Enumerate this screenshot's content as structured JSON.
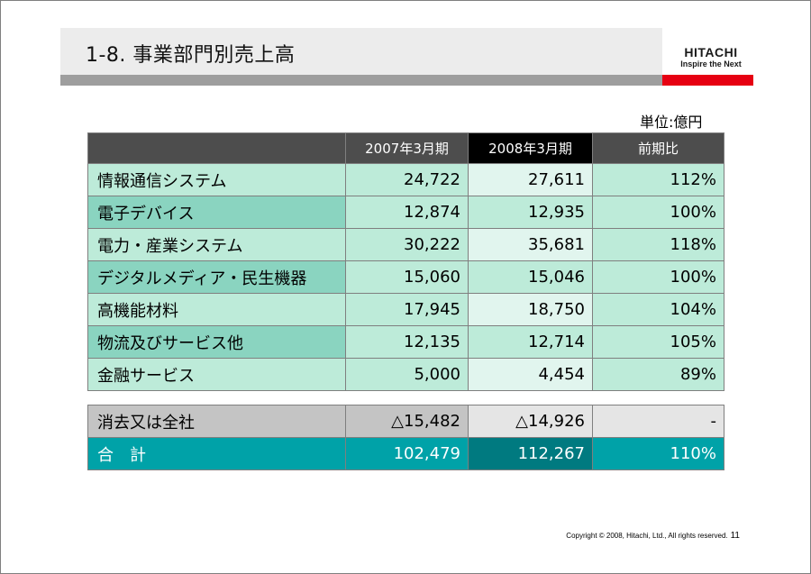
{
  "title": "1-8. 事業部門別売上高",
  "logo": {
    "main": "HITACHI",
    "tagline": "Inspire the Next"
  },
  "unit": "単位:億円",
  "colors": {
    "row_a_label": "#bdebd9",
    "row_a_c1": "#bdebd9",
    "row_a_c2": "#e1f5ee",
    "row_a_c3": "#bdebd9",
    "row_b_label": "#8ad4c0",
    "row_b_c1": "#bdebd9",
    "row_b_c2": "#bdebd9",
    "row_b_c3": "#bdebd9",
    "elim": "#c4c4c4",
    "elim_c2": "#e5e5e5",
    "elim_c3": "#e5e5e5",
    "total": "#00a2a8",
    "total_c2": "#007a80",
    "total_text": "#ffffff"
  },
  "table": {
    "headers": [
      "",
      "2007年3月期",
      "2008年3月期",
      "前期比"
    ],
    "rows": [
      {
        "label": "情報通信システム",
        "fy2007": "24,722",
        "fy2008": "27,611",
        "ratio": "112%"
      },
      {
        "label": "電子デバイス",
        "fy2007": "12,874",
        "fy2008": "12,935",
        "ratio": "100%"
      },
      {
        "label": "電力・産業システム",
        "fy2007": "30,222",
        "fy2008": "35,681",
        "ratio": "118%"
      },
      {
        "label": "デジタルメディア・民生機器",
        "fy2007": "15,060",
        "fy2008": "15,046",
        "ratio": "100%"
      },
      {
        "label": "高機能材料",
        "fy2007": "17,945",
        "fy2008": "18,750",
        "ratio": "104%"
      },
      {
        "label": "物流及びサービス他",
        "fy2007": "12,135",
        "fy2008": "12,714",
        "ratio": "105%"
      },
      {
        "label": "金融サービス",
        "fy2007": "5,000",
        "fy2008": "4,454",
        "ratio": "89%"
      }
    ],
    "elimination": {
      "label": "消去又は全社",
      "fy2007": "△15,482",
      "fy2008": "△14,926",
      "ratio": "-"
    },
    "total": {
      "label": "合　計",
      "fy2007": "102,479",
      "fy2008": "112,267",
      "ratio": "110%"
    }
  },
  "footer": {
    "copyright": "Copyright © 2008, Hitachi, Ltd., All rights reserved.",
    "page": "11"
  }
}
